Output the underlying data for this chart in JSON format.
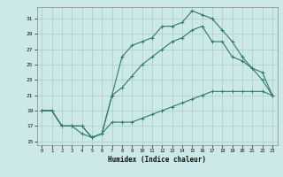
{
  "background_color": "#cce8e8",
  "grid_color": "#aacccc",
  "line_color": "#2d7a6e",
  "xlabel": "Humidex (Indice chaleur)",
  "xlim": [
    -0.5,
    23.5
  ],
  "ylim": [
    14.5,
    32.5
  ],
  "yticks": [
    15,
    17,
    19,
    21,
    23,
    25,
    27,
    29,
    31
  ],
  "xticks": [
    0,
    1,
    2,
    3,
    4,
    5,
    6,
    7,
    8,
    9,
    10,
    11,
    12,
    13,
    14,
    15,
    16,
    17,
    18,
    19,
    20,
    21,
    22,
    23
  ],
  "line1_x": [
    0,
    1,
    2,
    3,
    4,
    5,
    6,
    7,
    8,
    9,
    10,
    11,
    12,
    13,
    14,
    15,
    16,
    17,
    18,
    19,
    20,
    21,
    22,
    23
  ],
  "line1_y": [
    19,
    19,
    17,
    17,
    16,
    15.5,
    16,
    17.5,
    17.5,
    17.5,
    18,
    18.5,
    19,
    19.5,
    20,
    20.5,
    21,
    21.5,
    21.5,
    21.5,
    21.5,
    21.5,
    21.5,
    21
  ],
  "line2_x": [
    0,
    1,
    2,
    3,
    4,
    5,
    6,
    7,
    8,
    9,
    10,
    11,
    12,
    13,
    14,
    15,
    16,
    17,
    18,
    19,
    20,
    21,
    22,
    23
  ],
  "line2_y": [
    19,
    19,
    17,
    17,
    17,
    15.5,
    16,
    21,
    26,
    27.5,
    28,
    28.5,
    30,
    30,
    30.5,
    32,
    31.5,
    31,
    29.5,
    28,
    26,
    24.5,
    23,
    21
  ],
  "line3_x": [
    0,
    1,
    2,
    3,
    4,
    5,
    6,
    7,
    8,
    9,
    10,
    11,
    12,
    13,
    14,
    15,
    16,
    17,
    18,
    19,
    20,
    21,
    22,
    23
  ],
  "line3_y": [
    19,
    19,
    17,
    17,
    17,
    15.5,
    16,
    21,
    22,
    23.5,
    25,
    26,
    27,
    28,
    28.5,
    29.5,
    30,
    28,
    28,
    26,
    25.5,
    24.5,
    24,
    21
  ]
}
